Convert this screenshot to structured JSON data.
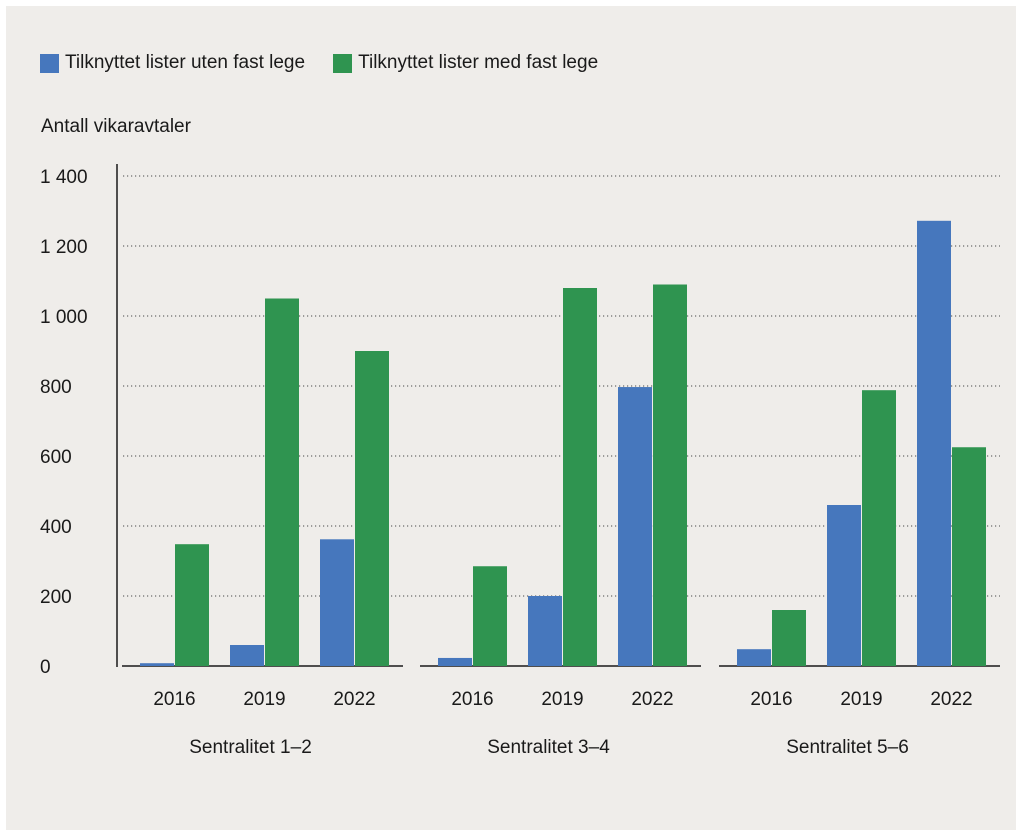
{
  "chart_data": {
    "type": "bar",
    "ylabel": "Antall vikaravtaler",
    "ylim": [
      0,
      1400
    ],
    "yticks": [
      0,
      200,
      400,
      600,
      800,
      1000,
      1200,
      1400
    ],
    "ytick_labels": [
      "0",
      "200",
      "400",
      "600",
      "800",
      "1 000",
      "1 200",
      "1 400"
    ],
    "grid": "horizontal-dotted",
    "legend_position": "top-left",
    "groups": [
      {
        "label": "Sentralitet 1–2",
        "categories": [
          "2016",
          "2019",
          "2022"
        ]
      },
      {
        "label": "Sentralitet 3–4",
        "categories": [
          "2016",
          "2019",
          "2022"
        ]
      },
      {
        "label": "Sentralitet 5–6",
        "categories": [
          "2016",
          "2019",
          "2022"
        ]
      }
    ],
    "series": [
      {
        "name": "Tilknyttet lister uten fast lege",
        "color": "#4677bd",
        "values": [
          [
            8,
            60,
            362
          ],
          [
            23,
            200,
            797
          ],
          [
            48,
            460,
            1272
          ]
        ]
      },
      {
        "name": "Tilknyttet lister med fast lege",
        "color": "#2f9450",
        "values": [
          [
            348,
            1050,
            900
          ],
          [
            285,
            1080,
            1090
          ],
          [
            160,
            788,
            625
          ]
        ]
      }
    ]
  }
}
